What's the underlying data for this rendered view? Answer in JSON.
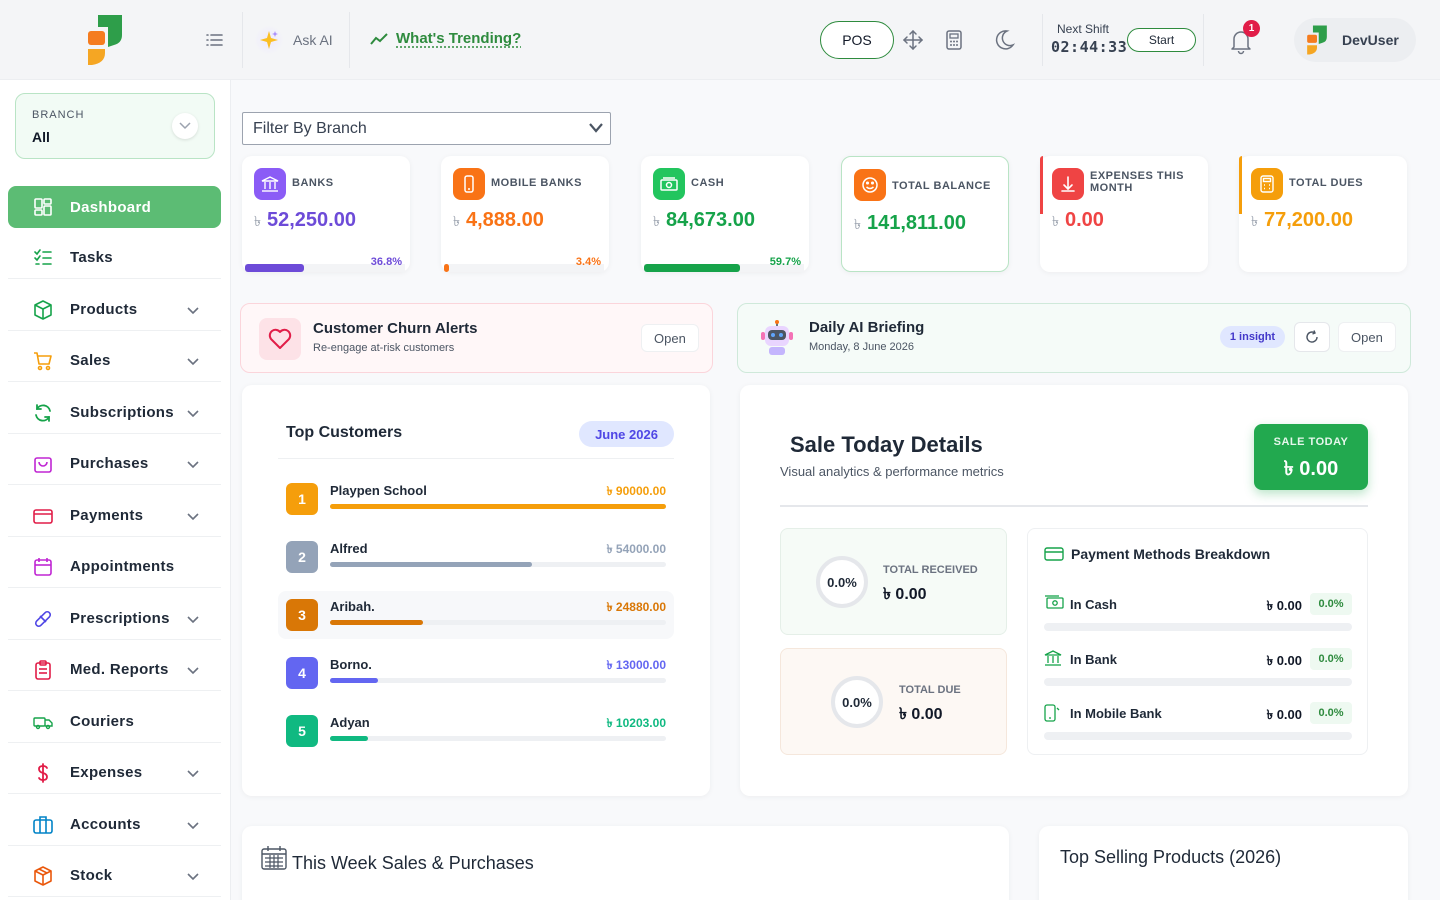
{
  "header": {
    "ask_ai_label": "Ask AI",
    "trending_label": "What's Trending?",
    "pos_label": "POS",
    "shift_label": "Next Shift",
    "shift_time": "02:44:33",
    "start_label": "Start",
    "notification_count": "1",
    "username": "DevUser"
  },
  "sidebar": {
    "branch_label": "BRANCH",
    "branch_value": "All",
    "items": [
      {
        "label": "Dashboard",
        "icon": "dashboard-icon",
        "active": true
      },
      {
        "label": "Tasks",
        "icon": "tasks-icon"
      },
      {
        "label": "Products",
        "icon": "box-icon"
      },
      {
        "label": "Sales",
        "icon": "cart-icon"
      },
      {
        "label": "Subscriptions",
        "icon": "refresh-icon"
      },
      {
        "label": "Purchases",
        "icon": "bag-icon"
      },
      {
        "label": "Payments",
        "icon": "credit-card-icon"
      },
      {
        "label": "Appointments",
        "icon": "calendar-icon"
      },
      {
        "label": "Prescriptions",
        "icon": "pill-icon"
      },
      {
        "label": "Med. Reports",
        "icon": "clipboard-icon"
      },
      {
        "label": "Couriers",
        "icon": "truck-icon"
      },
      {
        "label": "Expenses",
        "icon": "dollar-icon"
      },
      {
        "label": "Accounts",
        "icon": "briefcase-icon"
      },
      {
        "label": "Stock",
        "icon": "package-icon"
      }
    ]
  },
  "filter": {
    "placeholder": "Filter By Branch"
  },
  "currency": "৳",
  "stats": [
    {
      "title": "BANKS",
      "value": "52,250.00",
      "percent": "36.8%",
      "progress": 0.368,
      "color": "#6d4bd8",
      "icon_bg": "#8b5cf6",
      "icon": "bank-icon"
    },
    {
      "title": "MOBILE BANKS",
      "value": "4,888.00",
      "percent": "3.4%",
      "progress": 0.034,
      "color": "#f97316",
      "icon_bg": "#f97316",
      "icon": "mobile-icon"
    },
    {
      "title": "CASH",
      "value": "84,673.00",
      "percent": "59.7%",
      "progress": 0.597,
      "color": "#16a34a",
      "icon_bg": "#22c55e",
      "icon": "cash-icon"
    },
    {
      "title": "TOTAL BALANCE",
      "value": "141,811.00",
      "color": "#16a34a",
      "icon_bg": "#f97316",
      "icon": "smile-icon"
    },
    {
      "title": "EXPENSES THIS MONTH",
      "value": "0.00",
      "color": "#ef4444",
      "icon_bg": "#ef4444",
      "icon": "arrow-down-icon"
    },
    {
      "title": "TOTAL DUES",
      "value": "77,200.00",
      "color": "#f59e0b",
      "icon_bg": "#f59e0b",
      "icon": "calculator-icon"
    }
  ],
  "churn": {
    "title": "Customer Churn Alerts",
    "subtitle": "Re-engage at-risk customers",
    "open": "Open"
  },
  "briefing": {
    "title": "Daily AI Briefing",
    "date": "Monday, 8 June 2026",
    "badge": "1 insight",
    "open": "Open"
  },
  "top_customers": {
    "title": "Top Customers",
    "period": "June 2026",
    "rows": [
      {
        "rank": "1",
        "name": "Playpen School",
        "amount": "৳ 90000.00",
        "share": 1.0,
        "color": "#f59e0b"
      },
      {
        "rank": "2",
        "name": "Alfred",
        "amount": "৳ 54000.00",
        "share": 0.6,
        "color": "#94a3b8"
      },
      {
        "rank": "3",
        "name": "Aribah.",
        "amount": "৳ 24880.00",
        "share": 0.276,
        "color": "#d97706"
      },
      {
        "rank": "4",
        "name": "Borno.",
        "amount": "৳ 13000.00",
        "share": 0.144,
        "color": "#6366f1"
      },
      {
        "rank": "5",
        "name": "Adyan",
        "amount": "৳ 10203.00",
        "share": 0.113,
        "color": "#10b981"
      }
    ]
  },
  "sale_today": {
    "title": "Sale Today Details",
    "subtitle": "Visual analytics & performance metrics",
    "badge_label": "SALE TODAY",
    "badge_value": "৳ 0.00",
    "received_label": "TOTAL RECEIVED",
    "received_value": "৳ 0.00",
    "received_pct": "0.0%",
    "due_label": "TOTAL DUE",
    "due_value": "৳ 0.00",
    "due_pct": "0.0%",
    "methods_title": "Payment Methods Breakdown",
    "methods": [
      {
        "label": "In Cash",
        "amount": "৳ 0.00",
        "pct": "0.0%",
        "icon": "cash-icon"
      },
      {
        "label": "In Bank",
        "amount": "৳ 0.00",
        "pct": "0.0%",
        "icon": "bank-icon"
      },
      {
        "label": "In Mobile Bank",
        "amount": "৳ 0.00",
        "pct": "0.0%",
        "icon": "mobile-icon"
      }
    ]
  },
  "week_sales": {
    "title": "This Week Sales & Purchases"
  },
  "top_products": {
    "title": "Top Selling Products (2026)"
  }
}
